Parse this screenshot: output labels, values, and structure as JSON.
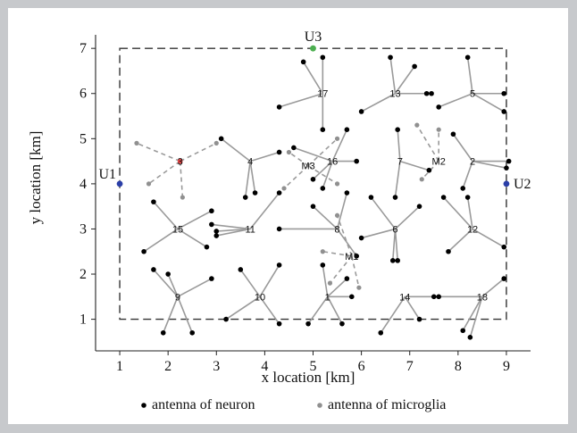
{
  "chart_data": {
    "type": "scatter",
    "xlabel": "x location [km]",
    "ylabel": "y location [km]",
    "xlim": [
      0.5,
      9.5
    ],
    "ylim": [
      0.3,
      7.3
    ],
    "xticks": [
      1,
      2,
      3,
      4,
      5,
      6,
      7,
      8,
      9
    ],
    "yticks": [
      1,
      2,
      3,
      4,
      5,
      6,
      7
    ],
    "region": {
      "x": [
        1,
        9
      ],
      "y": [
        1,
        7
      ]
    },
    "users": [
      {
        "label": "U1",
        "x": 1,
        "y": 4,
        "color": "#2b3fa8"
      },
      {
        "label": "U2",
        "x": 9,
        "y": 4,
        "color": "#2b3fa8"
      },
      {
        "label": "U3",
        "x": 5,
        "y": 7,
        "color": "#4caf50"
      }
    ],
    "neurons": [
      {
        "id": "1",
        "x": 5.3,
        "y": 1.5,
        "antennas": [
          [
            4.9,
            0.9
          ],
          [
            5.6,
            0.9
          ],
          [
            5.8,
            1.5
          ],
          [
            5.2,
            2.2
          ],
          [
            5.7,
            1.9
          ]
        ]
      },
      {
        "id": "2",
        "x": 8.3,
        "y": 4.5,
        "antennas": [
          [
            7.9,
            5.1
          ],
          [
            9.05,
            4.5
          ],
          [
            9.0,
            4.35
          ],
          [
            8.1,
            3.9
          ]
        ]
      },
      {
        "id": "4",
        "x": 3.7,
        "y": 4.5,
        "antennas": [
          [
            3.1,
            5.0
          ],
          [
            3.6,
            3.7
          ],
          [
            3.8,
            3.8
          ],
          [
            4.3,
            4.7
          ]
        ]
      },
      {
        "id": "5",
        "x": 8.3,
        "y": 6.0,
        "antennas": [
          [
            8.2,
            6.8
          ],
          [
            8.95,
            6.0
          ],
          [
            8.95,
            5.6
          ],
          [
            7.6,
            5.7
          ]
        ]
      },
      {
        "id": "6",
        "x": 6.7,
        "y": 3.0,
        "antennas": [
          [
            6.2,
            3.7
          ],
          [
            7.2,
            3.5
          ],
          [
            6.75,
            2.3
          ],
          [
            6.65,
            2.3
          ],
          [
            6.0,
            2.8
          ]
        ]
      },
      {
        "id": "7",
        "x": 6.8,
        "y": 4.5,
        "antennas": [
          [
            6.75,
            5.2
          ],
          [
            6.7,
            3.7
          ],
          [
            7.4,
            4.3
          ]
        ]
      },
      {
        "id": "8",
        "x": 5.5,
        "y": 3.0,
        "antennas": [
          [
            5.0,
            3.5
          ],
          [
            5.7,
            3.8
          ],
          [
            4.3,
            3.0
          ],
          [
            5.9,
            2.4
          ]
        ]
      },
      {
        "id": "9",
        "x": 2.2,
        "y": 1.5,
        "antennas": [
          [
            1.7,
            2.1
          ],
          [
            2.0,
            2.0
          ],
          [
            1.9,
            0.7
          ],
          [
            2.5,
            0.7
          ],
          [
            2.9,
            1.9
          ]
        ]
      },
      {
        "id": "10",
        "x": 3.9,
        "y": 1.5,
        "antennas": [
          [
            3.5,
            2.1
          ],
          [
            4.3,
            2.2
          ],
          [
            3.2,
            1.0
          ],
          [
            4.3,
            0.9
          ]
        ]
      },
      {
        "id": "11",
        "x": 3.7,
        "y": 3.0,
        "antennas": [
          [
            2.9,
            3.1
          ],
          [
            3.0,
            2.85
          ],
          [
            3.0,
            2.95
          ],
          [
            4.3,
            3.8
          ]
        ]
      },
      {
        "id": "12",
        "x": 8.3,
        "y": 3.0,
        "antennas": [
          [
            7.7,
            3.7
          ],
          [
            8.2,
            3.7
          ],
          [
            7.8,
            2.5
          ],
          [
            8.95,
            2.6
          ]
        ]
      },
      {
        "id": "13",
        "x": 6.7,
        "y": 6.0,
        "antennas": [
          [
            6.0,
            5.6
          ],
          [
            6.6,
            6.8
          ],
          [
            7.1,
            6.6
          ],
          [
            7.35,
            6.0
          ],
          [
            7.45,
            6.0
          ]
        ]
      },
      {
        "id": "14",
        "x": 6.9,
        "y": 1.5,
        "antennas": [
          [
            6.4,
            0.7
          ],
          [
            7.2,
            1.0
          ],
          [
            7.5,
            1.5
          ]
        ]
      },
      {
        "id": "15",
        "x": 2.2,
        "y": 3.0,
        "antennas": [
          [
            1.7,
            3.6
          ],
          [
            2.9,
            3.4
          ],
          [
            1.5,
            2.5
          ],
          [
            2.8,
            2.6
          ]
        ]
      },
      {
        "id": "16",
        "x": 5.4,
        "y": 4.5,
        "antennas": [
          [
            5.7,
            5.2
          ],
          [
            5.9,
            4.5
          ],
          [
            4.6,
            4.8
          ],
          [
            5.0,
            4.1
          ],
          [
            5.2,
            3.9
          ]
        ]
      },
      {
        "id": "17",
        "x": 5.2,
        "y": 6.0,
        "antennas": [
          [
            4.8,
            6.7
          ],
          [
            5.2,
            6.8
          ],
          [
            4.3,
            5.7
          ],
          [
            5.2,
            5.2
          ]
        ]
      },
      {
        "id": "18",
        "x": 8.5,
        "y": 1.5,
        "antennas": [
          [
            7.6,
            1.5
          ],
          [
            8.25,
            0.6
          ],
          [
            8.1,
            0.75
          ],
          [
            8.95,
            1.9
          ]
        ]
      },
      {
        "id": "3",
        "x": 2.25,
        "y": 4.5,
        "hub_color": "#e04040",
        "antennas": []
      }
    ],
    "microglia": [
      {
        "id": "M1",
        "x": 5.8,
        "y": 2.4,
        "antennas": [
          [
            5.5,
            3.3
          ],
          [
            5.2,
            2.5
          ],
          [
            5.35,
            1.8
          ],
          [
            5.95,
            1.7
          ]
        ]
      },
      {
        "id": "M2",
        "x": 7.6,
        "y": 4.5,
        "antennas": [
          [
            7.15,
            5.3
          ],
          [
            7.6,
            5.2
          ],
          [
            7.25,
            4.1
          ]
        ]
      },
      {
        "id": "M3",
        "x": 4.9,
        "y": 4.4,
        "antennas": [
          [
            4.4,
            3.9
          ],
          [
            4.5,
            4.7
          ],
          [
            5.5,
            5.0
          ],
          [
            5.5,
            4.0
          ]
        ]
      },
      {
        "id": "3",
        "x": 2.25,
        "y": 4.5,
        "antennas": [
          [
            1.35,
            4.9
          ],
          [
            1.6,
            4.0
          ],
          [
            2.3,
            3.7
          ],
          [
            3.0,
            4.9
          ]
        ]
      }
    ],
    "legend": [
      {
        "label": "antenna of neuron",
        "color": "#000000"
      },
      {
        "label": "antenna of microglia",
        "color": "#909090"
      }
    ]
  }
}
